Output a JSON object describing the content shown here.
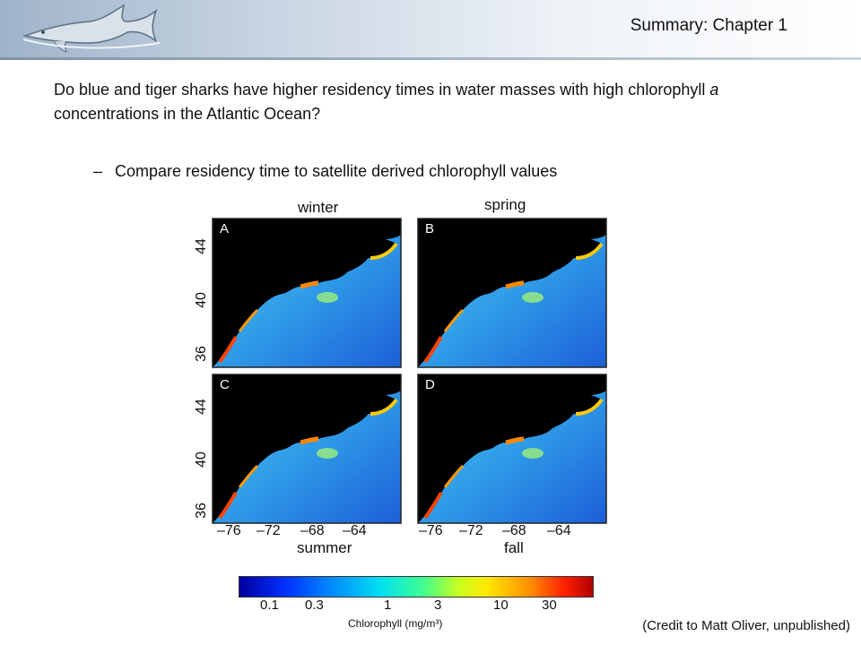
{
  "header": {
    "title": "Summary: Chapter 1",
    "logo_icon": "shark-icon"
  },
  "question": {
    "part1": "Do blue  and tiger sharks have higher residency times in water masses with high chlorophyll ",
    "italic": "a",
    "part2": " concentrations in the Atlantic Ocean?"
  },
  "bullet": {
    "dash": "–",
    "text": "Compare residency time to satellite derived chlorophyll values"
  },
  "panels": [
    {
      "letter": "A",
      "season": "winter"
    },
    {
      "letter": "B",
      "season": "spring"
    },
    {
      "letter": "C",
      "season": "summer"
    },
    {
      "letter": "D",
      "season": "fall"
    }
  ],
  "axes": {
    "y_ticks": [
      "44",
      "40",
      "36"
    ],
    "x_ticks": [
      "–76",
      "–72",
      "–68",
      "–64"
    ]
  },
  "colorbar": {
    "ticks": [
      "0.1",
      "0.3",
      "1",
      "3",
      "10",
      "30"
    ],
    "label": "Chlorophyll (mg/m³)",
    "stops": [
      "#0000a0",
      "#0090ff",
      "#00e0f0",
      "#c8ff20",
      "#ffe800",
      "#ff2000",
      "#b00000"
    ]
  },
  "credit": "(Credit to Matt Oliver, unpublished)"
}
